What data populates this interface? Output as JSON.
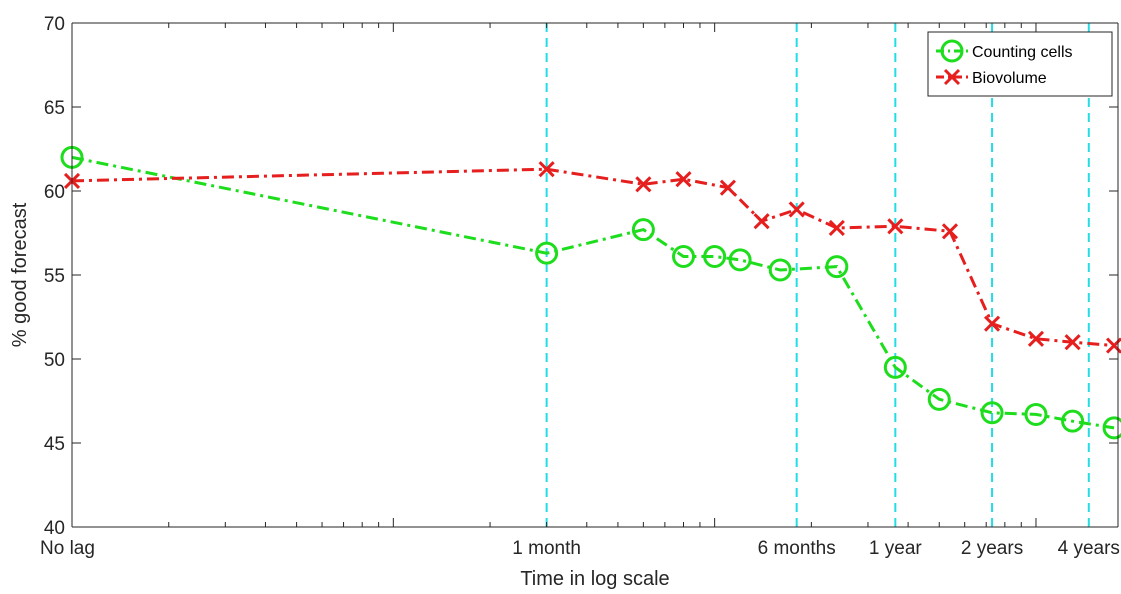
{
  "chart_data": {
    "type": "line",
    "xlabel": "Time in log scale",
    "ylabel": "% good forecast",
    "ylim": [
      40,
      70
    ],
    "yticks": [
      40,
      45,
      50,
      55,
      60,
      65,
      70
    ],
    "x_scale": "log",
    "x_unit": "days",
    "xlim": [
      1,
      1800
    ],
    "xticks": [
      {
        "label": "No lag",
        "value": 1
      },
      {
        "label": "1 month",
        "value": 30
      },
      {
        "label": "6 months",
        "value": 180
      },
      {
        "label": "1 year",
        "value": 365
      },
      {
        "label": "2 years",
        "value": 730
      },
      {
        "label": "4 years",
        "value": 1460
      }
    ],
    "reference_lines": {
      "color": "#22dde6",
      "style": "dashed",
      "x": [
        30,
        180,
        365,
        730,
        1460
      ]
    },
    "grid": false,
    "legend": {
      "position": "top-right"
    },
    "series": [
      {
        "name": "Counting cells",
        "color": "#1ddd1d",
        "marker": "circle",
        "line_style": "dash-dot",
        "points": [
          {
            "x": 1,
            "y": 62.0
          },
          {
            "x": 30,
            "y": 56.3
          },
          {
            "x": 60,
            "y": 57.7
          },
          {
            "x": 80,
            "y": 56.1
          },
          {
            "x": 100,
            "y": 56.1
          },
          {
            "x": 120,
            "y": 55.9
          },
          {
            "x": 160,
            "y": 55.3
          },
          {
            "x": 240,
            "y": 55.5
          },
          {
            "x": 365,
            "y": 49.5
          },
          {
            "x": 500,
            "y": 47.6
          },
          {
            "x": 730,
            "y": 46.8
          },
          {
            "x": 1000,
            "y": 46.7
          },
          {
            "x": 1300,
            "y": 46.3
          },
          {
            "x": 1750,
            "y": 45.9
          }
        ]
      },
      {
        "name": "Biovolume",
        "color": "#e61e1e",
        "marker": "x",
        "line_style": "dash-dot",
        "points": [
          {
            "x": 1,
            "y": 60.6
          },
          {
            "x": 30,
            "y": 61.3
          },
          {
            "x": 60,
            "y": 60.4
          },
          {
            "x": 80,
            "y": 60.7
          },
          {
            "x": 110,
            "y": 60.2
          },
          {
            "x": 140,
            "y": 58.2
          },
          {
            "x": 180,
            "y": 58.9
          },
          {
            "x": 240,
            "y": 57.8
          },
          {
            "x": 365,
            "y": 57.9
          },
          {
            "x": 540,
            "y": 57.6
          },
          {
            "x": 730,
            "y": 52.1
          },
          {
            "x": 1000,
            "y": 51.2
          },
          {
            "x": 1300,
            "y": 51.0
          },
          {
            "x": 1750,
            "y": 50.8
          }
        ]
      }
    ]
  }
}
